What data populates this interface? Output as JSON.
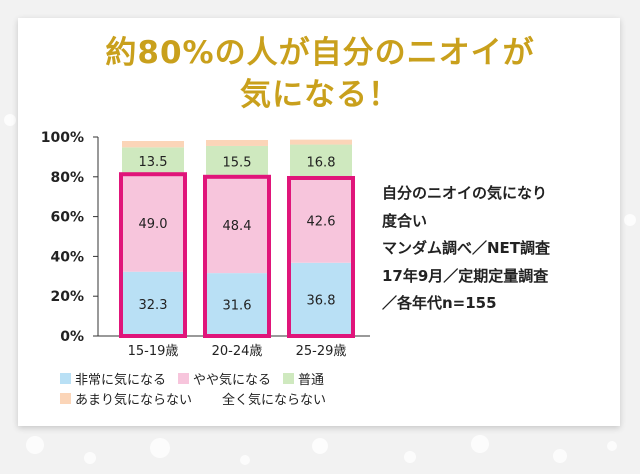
{
  "title": {
    "line1": "約80%の人が自分のニオイが",
    "line2": "気になる！"
  },
  "note": {
    "lines": [
      "自分のニオイの気になり",
      "度合い",
      "マンダム調べ／NET調査",
      "17年9月／定期定量調査",
      "／各年代n=155"
    ]
  },
  "colors": {
    "title": "#c9a01c",
    "very": "#b9e0f5",
    "somewhat": "#f7c5dc",
    "normal": "#cfe9bf",
    "not_much": "#fbd5b8",
    "not_at_all": "#ffffff",
    "highlight": "#e0157a"
  },
  "chart_data": {
    "type": "bar",
    "stacked": true,
    "categories": [
      "15-19歳",
      "20-24歳",
      "25-29歳"
    ],
    "yticks": [
      "0%",
      "20%",
      "40%",
      "60%",
      "80%",
      "100%"
    ],
    "ylim": [
      0,
      100
    ],
    "series": [
      {
        "name": "非常に気になる",
        "color_key": "very",
        "values": [
          32.3,
          31.6,
          36.8
        ],
        "labels": [
          "32.3",
          "31.6",
          "36.8"
        ]
      },
      {
        "name": "やや気になる",
        "color_key": "somewhat",
        "values": [
          49.0,
          48.4,
          42.6
        ],
        "labels": [
          "49.0",
          "48.4",
          "42.6"
        ]
      },
      {
        "name": "普通",
        "color_key": "normal",
        "values": [
          13.5,
          15.5,
          16.8
        ],
        "labels": [
          "13.5",
          "15.5",
          "16.8"
        ]
      },
      {
        "name": "あまり気にならない",
        "color_key": "not_much",
        "values": [
          3.2,
          3.0,
          2.5
        ]
      },
      {
        "name": "全く気にならない",
        "color_key": "not_at_all",
        "values": [
          2.0,
          1.5,
          1.3
        ]
      }
    ],
    "highlight_series": [
      "非常に気になる",
      "やや気になる"
    ],
    "grid": false,
    "legend_position": "bottom"
  }
}
